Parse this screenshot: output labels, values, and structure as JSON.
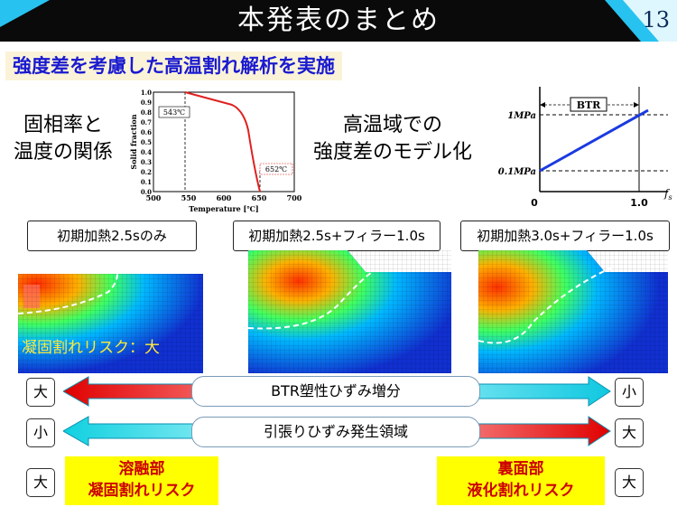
{
  "header": {
    "title": "本発表のまとめ",
    "page_number": "13"
  },
  "subtitle": "強度差を考慮した高温割れ解析を実施",
  "left_label": {
    "line1": "固相率と",
    "line2": "温度の関係"
  },
  "middle_label": {
    "line1": "高温域での",
    "line2": "強度差のモデル化"
  },
  "solid_chart": {
    "ylabel": "Solid fraction",
    "xlabel": "Temperature [℃]",
    "x_ticks": [
      "500",
      "550",
      "600",
      "650",
      "700"
    ],
    "y_ticks": [
      "0.0",
      "0.1",
      "0.2",
      "0.3",
      "0.4",
      "0.5",
      "0.6",
      "0.7",
      "0.8",
      "0.9",
      "1.0"
    ],
    "annotation_liquidus": "543℃",
    "annotation_solidus": "652℃"
  },
  "btr_chart": {
    "btr_label": "BTR",
    "y_top": "1MPa",
    "y_bottom": "0.1MPa",
    "x_zero": "0",
    "x_one": "1.0",
    "x_axis": "f"
  },
  "cases": [
    {
      "label": "初期加熱2.5sのみ"
    },
    {
      "label": "初期加熱2.5s+フィラー1.0s"
    },
    {
      "label": "初期加熱3.0s+フィラー1.0s"
    }
  ],
  "risk_label": "凝固割れリスク：大",
  "arrows": {
    "btr_strain": "BTR塑性ひずみ増分",
    "tension_area": "引張りひずみ発生領域"
  },
  "side_boxes": {
    "row1_left": "大",
    "row1_right": "小",
    "row2_left": "小",
    "row2_right": "大",
    "row3_left": "大",
    "row3_right": "大"
  },
  "callouts": {
    "left_line1": "溶融部",
    "left_line2": "凝固割れリスク",
    "right_line1": "裏面部",
    "right_line2": "液化割れリスク"
  },
  "colors": {
    "header": "#0a0a0a",
    "subtitle_text": "#1a1ad0",
    "callout_bg": "#ffff00",
    "callout_text": "#cc0000"
  }
}
